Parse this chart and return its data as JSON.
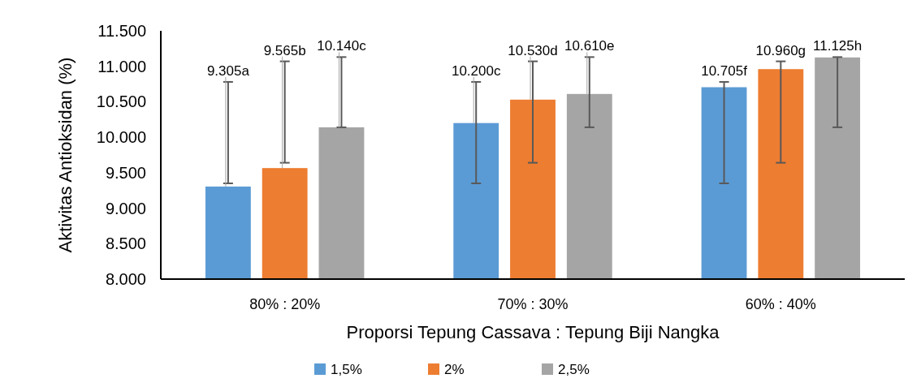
{
  "chart_data": {
    "type": "bar",
    "xlabel": "Proporsi Tepung Cassava : Tepung Biji Nangka",
    "ylabel": "Aktivitas Antioksidan (%)",
    "categories": [
      "80% : 20%",
      "70% : 30%",
      "60% : 40%"
    ],
    "series": [
      {
        "name": "1,5%",
        "color": "#5b9bd5",
        "values": [
          9305,
          10200,
          10705
        ],
        "value_labels": [
          "9.305a",
          "10.200c",
          "10.705f"
        ],
        "errors": [
          [
            9350,
            10780
          ],
          [
            9350,
            10780
          ],
          [
            9350,
            10780
          ]
        ]
      },
      {
        "name": "2%",
        "color": "#ed7d31",
        "values": [
          9565,
          10530,
          10960
        ],
        "value_labels": [
          "9.565b",
          "10.530d",
          "10.960g"
        ],
        "errors": [
          [
            9640,
            11070
          ],
          [
            9640,
            11070
          ],
          [
            9640,
            11070
          ]
        ]
      },
      {
        "name": "2,5%",
        "color": "#a5a5a5",
        "values": [
          10140,
          10610,
          11125
        ],
        "value_labels": [
          "10.140c",
          "10.610e",
          "11.125h"
        ],
        "errors": [
          [
            10140,
            11130
          ],
          [
            10140,
            11130
          ],
          [
            10140,
            11130
          ]
        ]
      }
    ],
    "ylim": [
      8000,
      11500
    ],
    "yticks": [
      {
        "value": 8000,
        "label": "8.000"
      },
      {
        "value": 8500,
        "label": "8.500"
      },
      {
        "value": 9000,
        "label": "9.000"
      },
      {
        "value": 9500,
        "label": "9.500"
      },
      {
        "value": 10000,
        "label": "10.000"
      },
      {
        "value": 10500,
        "label": "10.500"
      },
      {
        "value": 11000,
        "label": "11.000"
      },
      {
        "value": 11500,
        "label": "11.500"
      }
    ],
    "grid": false,
    "legend": "bottom"
  }
}
